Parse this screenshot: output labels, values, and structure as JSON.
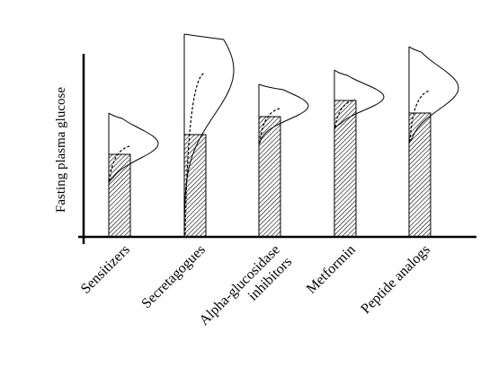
{
  "chart_data": {
    "type": "bar",
    "title": "",
    "ylabel": "Fasting plasma glucose",
    "xlabel": "",
    "categories": [
      "Sensitizers",
      "Secretagogues",
      "Alpha-glucosidase inhibitors",
      "Metformin",
      "Peptide analogs"
    ],
    "category_label_lines": [
      [
        "Sensitizers"
      ],
      [
        "Secretagogues"
      ],
      [
        "Alpha-glucosidase",
        "inhibitors"
      ],
      [
        "Metformin"
      ],
      [
        "Peptide analogs"
      ]
    ],
    "values": [
      0.46,
      0.57,
      0.67,
      0.76,
      0.69
    ],
    "distributions": [
      {
        "low": 0.3,
        "high": 0.69,
        "peak": 0.52
      },
      {
        "low": 0.0,
        "high": 1.13,
        "peak": 0.93
      },
      {
        "low": 0.51,
        "high": 0.85,
        "peak": 0.73
      },
      {
        "low": 0.6,
        "high": 0.93,
        "peak": 0.78
      },
      {
        "low": 0.52,
        "high": 1.06,
        "peak": 0.83
      }
    ],
    "axis_ticks": false,
    "grid": false,
    "legend": "none",
    "bar_pattern": "diagonal-hatch"
  }
}
